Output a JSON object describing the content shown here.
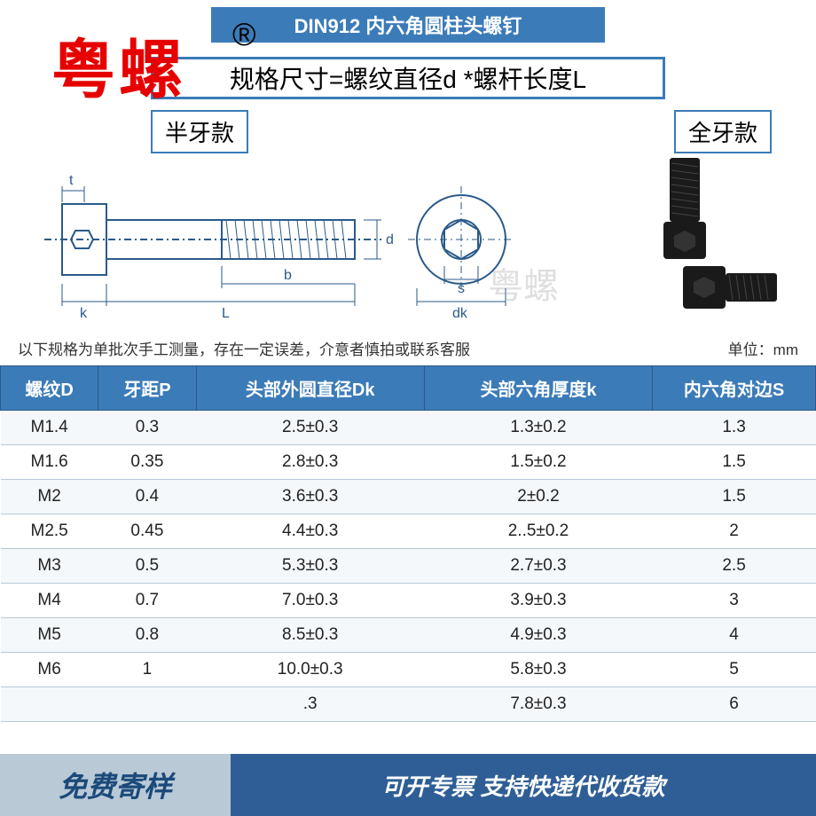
{
  "header": {
    "title": "DIN912 内六角圆柱头螺钉"
  },
  "watermark": {
    "brand": "粤螺",
    "registered": "®"
  },
  "formula": {
    "text": "规格尺寸=螺纹直径d *螺杆长度L"
  },
  "variants": {
    "left": "半牙款",
    "right": "全牙款"
  },
  "diagram_labels": {
    "t": "t",
    "k": "k",
    "L": "L",
    "b": "b",
    "d": "d",
    "s": "s",
    "dk": "dk"
  },
  "note": "以下规格为单批次手工测量，存在一定误差，介意者慎拍或联系客服",
  "unit": "单位：mm",
  "table": {
    "headers": [
      "螺纹D",
      "牙距P",
      "头部外圆直径Dk",
      "头部六角厚度k",
      "内六角对边S"
    ],
    "rows": [
      [
        "M1.4",
        "0.3",
        "2.5±0.3",
        "1.3±0.2",
        "1.3"
      ],
      [
        "M1.6",
        "0.35",
        "2.8±0.3",
        "1.5±0.2",
        "1.5"
      ],
      [
        "M2",
        "0.4",
        "3.6±0.3",
        "2±0.2",
        "1.5"
      ],
      [
        "M2.5",
        "0.45",
        "4.4±0.3",
        "2..5±0.2",
        "2"
      ],
      [
        "M3",
        "0.5",
        "5.3±0.3",
        "2.7±0.3",
        "2.5"
      ],
      [
        "M4",
        "0.7",
        "7.0±0.3",
        "3.9±0.3",
        "3"
      ],
      [
        "M5",
        "0.8",
        "8.5±0.3",
        "4.9±0.3",
        "4"
      ],
      [
        "M6",
        "1",
        "10.0±0.3",
        "5.8±0.3",
        "5"
      ],
      [
        "",
        "",
        ".3",
        "7.8±0.3",
        "6"
      ]
    ],
    "col_widths": [
      "12%",
      "12%",
      "28%",
      "28%",
      "20%"
    ]
  },
  "footer": {
    "left": "免费寄样",
    "right": "可开专票 支持快递代收货款"
  },
  "colors": {
    "primary": "#3b7bb8",
    "header_bg": "#3b7bb8",
    "watermark_red": "#e60000",
    "footer_left_bg": "#b9c9d6",
    "footer_right_bg": "#2e5e95"
  }
}
